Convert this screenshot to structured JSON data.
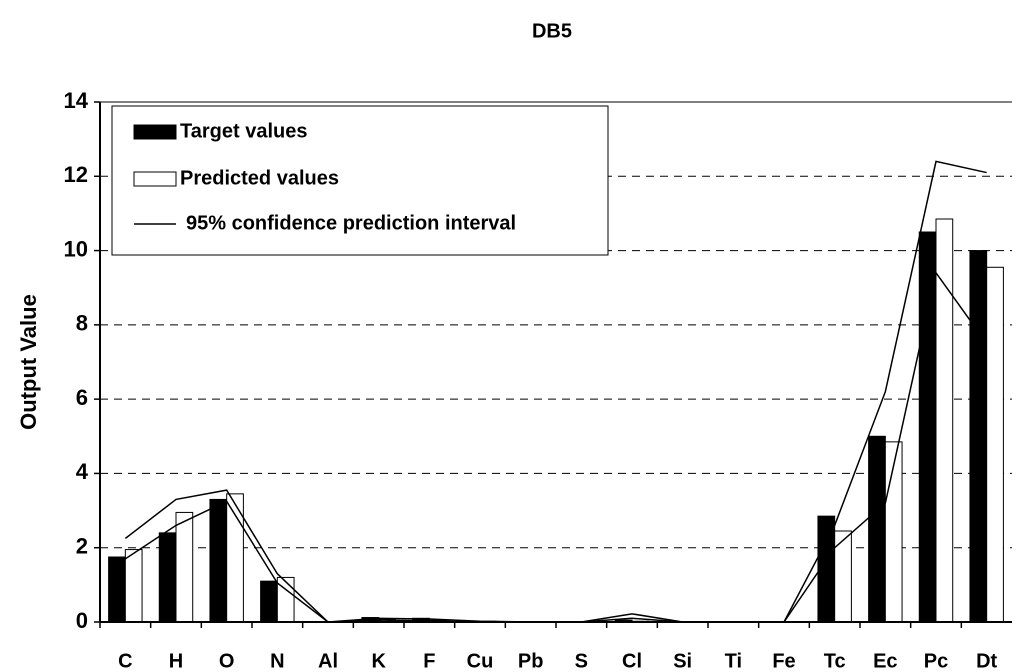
{
  "chart_data": {
    "type": "bar",
    "title": "DB5",
    "y_label": "Output Value",
    "categories": [
      "C",
      "H",
      "O",
      "N",
      "Al",
      "K",
      "F",
      "Cu",
      "Pb",
      "S",
      "Cl",
      "Si",
      "Ti",
      "Fe",
      "Tc",
      "Ec",
      "Pc",
      "Dt"
    ],
    "series": [
      {
        "name": "Target values",
        "color": "#000000",
        "values": [
          1.75,
          2.4,
          3.3,
          1.1,
          0,
          0.12,
          0.1,
          0,
          0,
          0,
          0.05,
          0,
          0,
          0,
          2.85,
          5.0,
          10.5,
          10.0
        ]
      },
      {
        "name": "Predicted values",
        "color": "#ffffff",
        "values": [
          1.95,
          2.95,
          3.45,
          1.2,
          0,
          0.08,
          0.05,
          0.02,
          0,
          0,
          0.02,
          0,
          0,
          0,
          2.45,
          4.85,
          10.85,
          9.55
        ]
      }
    ],
    "interval": {
      "name": "95% confidence prediction interval",
      "color": "#000000",
      "upper": [
        2.25,
        3.3,
        3.55,
        1.3,
        0,
        0.1,
        0.08,
        0.02,
        0,
        0,
        0.22,
        0,
        0,
        0,
        2.6,
        6.2,
        12.4,
        12.1
      ],
      "lower": [
        1.7,
        2.6,
        3.25,
        1.05,
        0,
        0.05,
        0.03,
        0,
        0,
        0,
        0.1,
        0,
        0,
        0,
        2.0,
        3.2,
        9.4,
        7.5
      ]
    },
    "ylim": [
      0,
      14
    ],
    "yticks": [
      0,
      2,
      4,
      6,
      8,
      10,
      12,
      14
    ],
    "grid": true,
    "legend": "upper left"
  }
}
